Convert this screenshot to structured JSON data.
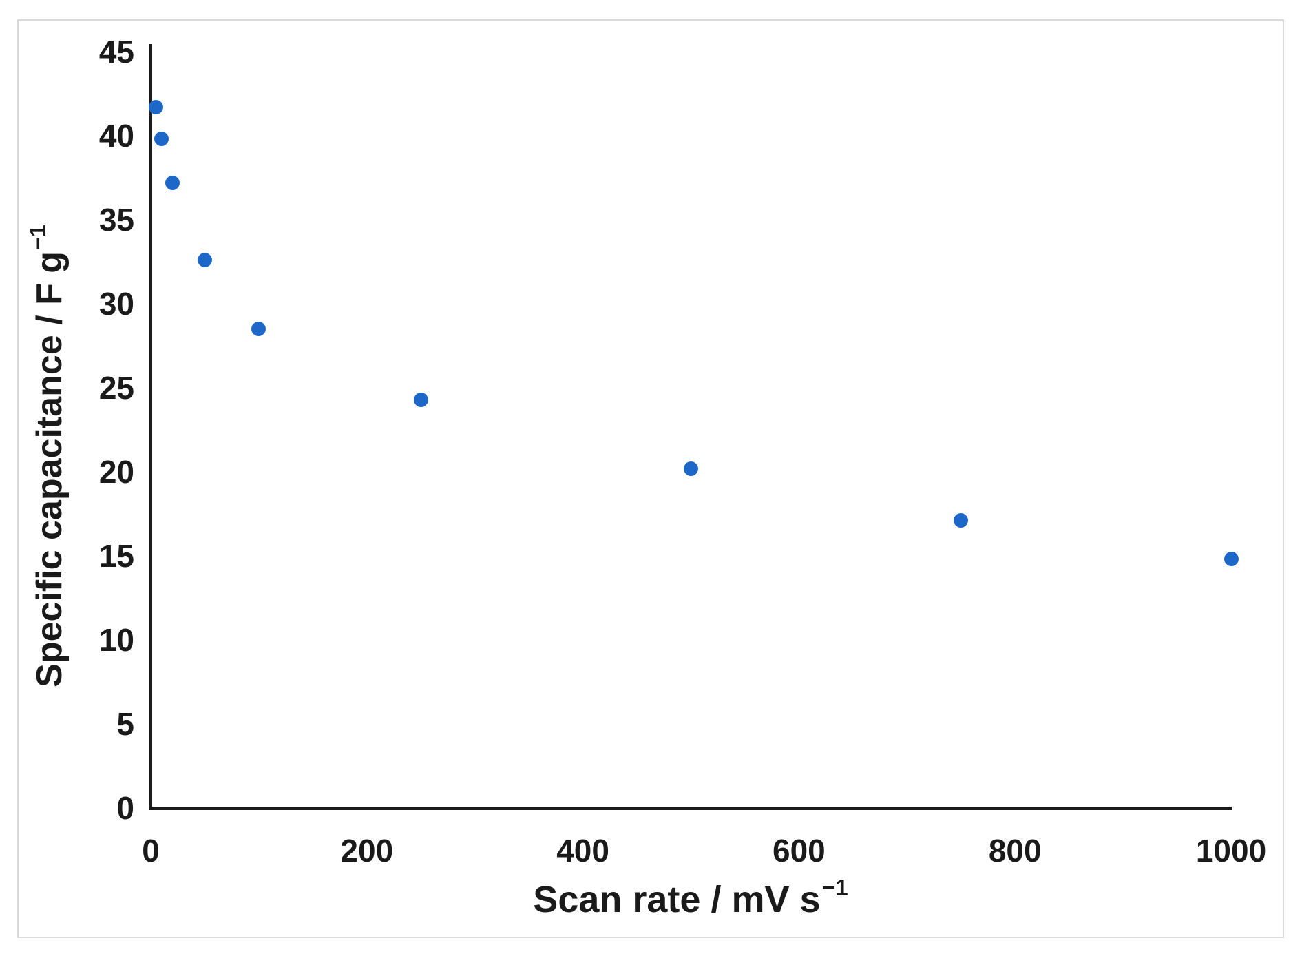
{
  "figure": {
    "background_color": "#ffffff",
    "border_color": "#d9d9d9"
  },
  "chart_data": {
    "type": "scatter",
    "title": "",
    "xlabel_main": "Scan rate / mV s",
    "xlabel_sup": "−1",
    "ylabel_main": "Specific capacitance / F g",
    "ylabel_sup": "−1",
    "xlim": [
      0,
      1000
    ],
    "ylim": [
      0,
      45
    ],
    "x_ticks": [
      0,
      200,
      400,
      600,
      800,
      1000
    ],
    "y_ticks": [
      0,
      5,
      10,
      15,
      20,
      25,
      30,
      35,
      40,
      45
    ],
    "grid": false,
    "legend_position": "none",
    "marker_color": "#1c67c8",
    "axis_color": "#1a1a1a",
    "points": [
      {
        "x": 5,
        "y": 41.7
      },
      {
        "x": 10,
        "y": 39.8
      },
      {
        "x": 20,
        "y": 37.2
      },
      {
        "x": 50,
        "y": 32.6
      },
      {
        "x": 100,
        "y": 28.5
      },
      {
        "x": 250,
        "y": 24.3
      },
      {
        "x": 500,
        "y": 20.2
      },
      {
        "x": 750,
        "y": 17.1
      },
      {
        "x": 1000,
        "y": 14.8
      }
    ]
  }
}
